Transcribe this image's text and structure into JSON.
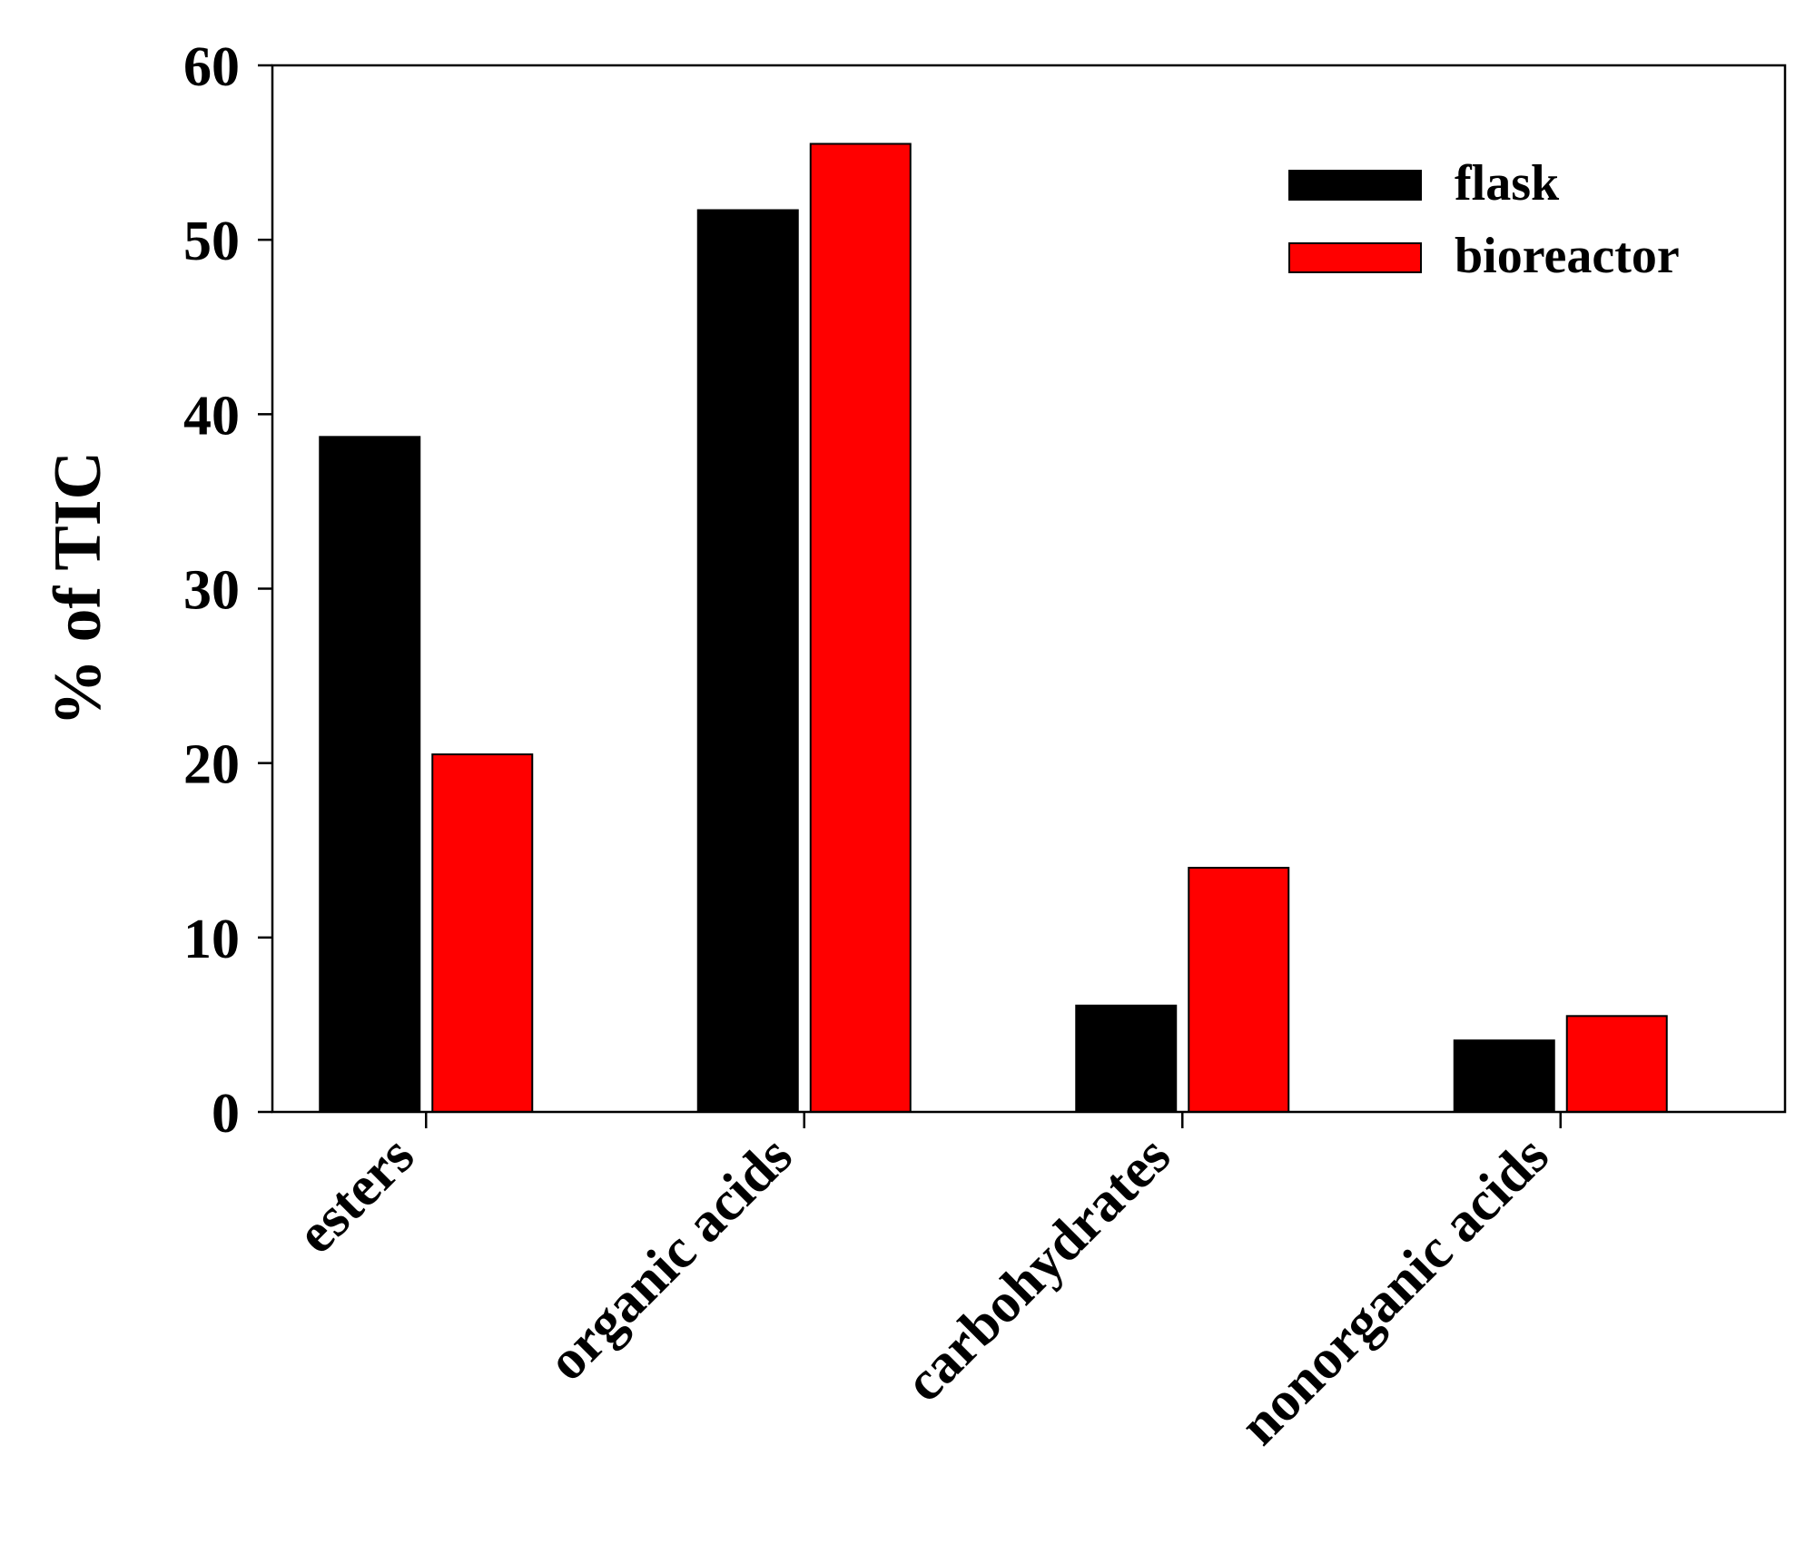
{
  "chart_data": {
    "type": "bar",
    "categories": [
      "esters",
      "organic acids",
      "carbohydrates",
      "nonorganic acids"
    ],
    "series": [
      {
        "name": "flask",
        "color": "#000000",
        "values": [
          38.7,
          51.7,
          6.1,
          4.1
        ]
      },
      {
        "name": "bioreactor",
        "color": "#ff0000",
        "values": [
          20.5,
          55.5,
          14.0,
          5.5
        ]
      }
    ],
    "title": "",
    "xlabel": "",
    "ylabel": "% of TIC",
    "ylim": [
      0,
      60
    ],
    "yticks": [
      "0",
      "10",
      "20",
      "30",
      "40",
      "50",
      "60"
    ],
    "grid": false,
    "legend_position": "top-right"
  }
}
